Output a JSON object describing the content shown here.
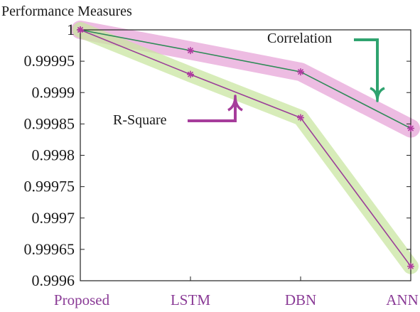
{
  "chart_data": {
    "type": "line",
    "title": "Performance Measures",
    "xlabel": "",
    "ylabel": "",
    "categories": [
      "Proposed",
      "LSTM",
      "DBN",
      "ANN"
    ],
    "ylim": [
      0.9996,
      1.0
    ],
    "yticks": [
      "1",
      "0.99995",
      "0.9999",
      "0.99985",
      "0.9998",
      "0.99975",
      "0.9997",
      "0.99965",
      "0.9996"
    ],
    "ytick_values": [
      1.0,
      0.99995,
      0.9999,
      0.99985,
      0.9998,
      0.99975,
      0.9997,
      0.99965,
      0.9996
    ],
    "grid": false,
    "series": [
      {
        "name": "Correlation",
        "values": [
          1.0,
          0.999967,
          0.999933,
          0.999843
        ],
        "line_color": "#2e8b57",
        "band_color": "#e7a6d8"
      },
      {
        "name": "R-Square",
        "values": [
          1.0,
          0.999929,
          0.99986,
          0.999623
        ],
        "line_color": "#9b3f99",
        "band_color": "#c9e6a2"
      }
    ],
    "annotations": [
      {
        "text": "Correlation",
        "arrow_color": "#2fa36f"
      },
      {
        "text": "R-Square",
        "arrow_color": "#a63d9b"
      }
    ],
    "xtick_color": "#8a3b96",
    "marker_color": "#b03aa0"
  }
}
